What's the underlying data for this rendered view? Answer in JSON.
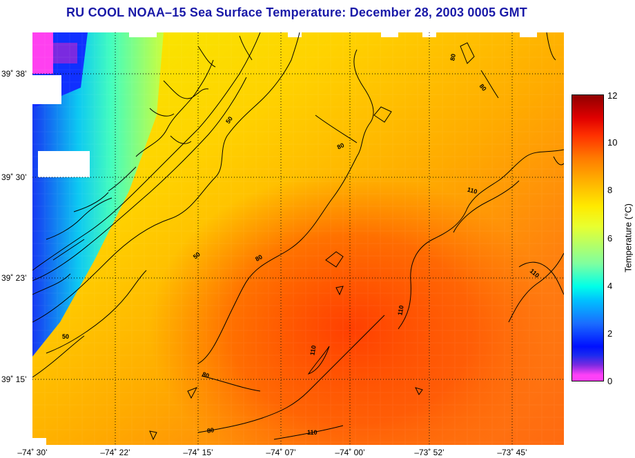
{
  "title": "RU COOL  NOAA–15  Sea Surface Temperature:  December 28, 2003 0005 GMT",
  "y_axis_ticks": [
    "39˚ 38’",
    "39˚ 30’",
    "39˚ 23’",
    "39˚ 15’"
  ],
  "x_axis_ticks": [
    "–74˚ 30’",
    "–74˚ 22’",
    "–74˚ 15’",
    "–74˚ 07’",
    "–74˚ 00’",
    "–73˚ 52’",
    "–73˚ 45’"
  ],
  "colorbar": {
    "title": "Temperature (°C)",
    "ticks": [
      "12",
      "10",
      "8",
      "6",
      "4",
      "2",
      "0"
    ],
    "range": [
      0,
      12
    ]
  },
  "contour_labels": [
    "50",
    "50",
    "50",
    "80",
    "80",
    "80",
    "80",
    "80",
    "110",
    "110",
    "110",
    "110",
    "110",
    "80"
  ]
}
